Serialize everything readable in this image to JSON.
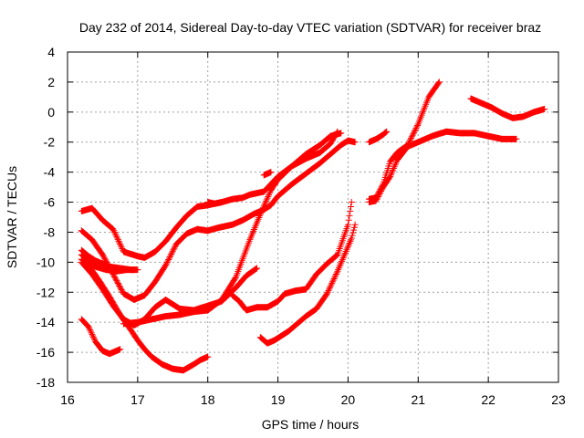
{
  "chart_data": {
    "type": "scatter",
    "title": "Day 232 of 2014, Sidereal Day-to-day VTEC variation (SDTVAR) for receiver braz",
    "xlabel": "GPS time / hours",
    "ylabel": "SDTVAR / TECUs",
    "xlim": [
      16,
      23
    ],
    "ylim": [
      -18,
      4
    ],
    "xticks": [
      16,
      17,
      18,
      19,
      20,
      21,
      22,
      23
    ],
    "yticks": [
      -18,
      -16,
      -14,
      -12,
      -10,
      -8,
      -6,
      -4,
      -2,
      0,
      2,
      4
    ],
    "grid": true,
    "legend": "none",
    "marker": "plus",
    "color": "#ff0000",
    "series": [
      {
        "x": [
          16.2,
          16.3,
          16.45,
          16.6,
          16.75,
          16.9,
          17.0,
          17.1,
          17.2,
          17.35,
          17.5,
          17.65,
          17.8,
          17.9,
          18.0
        ],
        "y": [
          -9.8,
          -10.2,
          -11.2,
          -12.3,
          -13.5,
          -14.5,
          -15.2,
          -15.8,
          -16.3,
          -16.8,
          -17.1,
          -17.2,
          -16.8,
          -16.5,
          -16.3
        ]
      },
      {
        "x": [
          16.2,
          16.35,
          16.5,
          16.65,
          16.8,
          17.0,
          17.1,
          17.25,
          17.4,
          17.55,
          17.7,
          17.85,
          18.0,
          18.1,
          18.2
        ],
        "y": [
          -6.6,
          -6.4,
          -7.2,
          -7.8,
          -9.3,
          -9.6,
          -9.7,
          -9.3,
          -8.6,
          -7.7,
          -6.9,
          -6.3,
          -6.2,
          -6.1,
          -6.0
        ]
      },
      {
        "x": [
          18.0,
          18.1,
          18.2,
          18.35,
          18.5,
          18.6,
          18.7,
          18.8,
          18.9,
          19.0,
          19.2,
          19.4,
          19.6,
          19.75,
          19.9
        ],
        "y": [
          -6.0,
          -6.1,
          -6.0,
          -5.8,
          -5.7,
          -5.5,
          -5.4,
          -5.3,
          -4.8,
          -4.3,
          -3.6,
          -2.8,
          -2.2,
          -1.6,
          -1.4
        ]
      },
      {
        "x": [
          16.2,
          16.3,
          16.4,
          16.5,
          16.6,
          16.75,
          16.9,
          17.0
        ],
        "y": [
          -9.2,
          -9.6,
          -9.9,
          -10.1,
          -10.3,
          -10.4,
          -10.5,
          -10.5
        ]
      },
      {
        "x": [
          16.2,
          16.35,
          16.5,
          16.65,
          16.8,
          16.95,
          17.1,
          17.25,
          17.4,
          17.55,
          17.7,
          17.85,
          18.0,
          18.15,
          18.35,
          18.5,
          18.65,
          18.8
        ],
        "y": [
          -7.9,
          -8.5,
          -9.5,
          -10.8,
          -12.1,
          -12.5,
          -12.2,
          -11.3,
          -10.2,
          -8.8,
          -8.1,
          -7.8,
          -7.9,
          -7.7,
          -7.5,
          -7.2,
          -6.8,
          -6.5
        ]
      },
      {
        "x": [
          18.8,
          18.9,
          19.0,
          19.2,
          19.4,
          19.6,
          19.75,
          19.9,
          20.0,
          20.1
        ],
        "y": [
          -6.5,
          -6.2,
          -5.6,
          -4.8,
          -4.1,
          -3.4,
          -2.8,
          -2.2,
          -1.9,
          -2.0
        ]
      },
      {
        "x": [
          16.2,
          16.35,
          16.5,
          16.65,
          16.8,
          16.95,
          17.1,
          17.25,
          17.4,
          17.6,
          17.8,
          18.0,
          18.2,
          18.4,
          18.55,
          18.7
        ],
        "y": [
          -10.0,
          -10.8,
          -11.8,
          -12.9,
          -13.8,
          -14.2,
          -13.8,
          -13.0,
          -12.5,
          -13.1,
          -13.2,
          -12.9,
          -12.6,
          -11.7,
          -10.9,
          -10.4
        ]
      },
      {
        "x": [
          16.2,
          16.3,
          16.4,
          16.5,
          16.6,
          16.75
        ],
        "y": [
          -13.8,
          -14.3,
          -15.3,
          -15.9,
          -16.1,
          -15.8
        ]
      },
      {
        "x": [
          16.8,
          17.0,
          17.2,
          17.4,
          17.6,
          17.8,
          18.0,
          18.2,
          18.4,
          18.6,
          18.75,
          18.9
        ],
        "y": [
          -14.1,
          -14.0,
          -13.8,
          -13.6,
          -13.5,
          -13.3,
          -13.2,
          -12.5,
          -11.0,
          -8.5,
          -6.8,
          -5.2
        ]
      },
      {
        "x": [
          18.9,
          19.0,
          19.2,
          19.4,
          19.6,
          19.75,
          19.85
        ],
        "y": [
          -5.2,
          -4.5,
          -3.6,
          -3.1,
          -2.7,
          -2.1,
          -1.3
        ]
      },
      {
        "x": [
          16.2,
          16.3,
          16.4,
          16.55,
          16.7,
          16.85,
          16.95
        ],
        "y": [
          -9.5,
          -9.9,
          -10.3,
          -10.5,
          -10.6,
          -10.5,
          -10.5
        ]
      },
      {
        "x": [
          18.35,
          18.45,
          18.55,
          18.7,
          18.85,
          19.0,
          19.1
        ],
        "y": [
          -12.2,
          -12.6,
          -13.2,
          -13.0,
          -13.0,
          -12.6,
          -12.1
        ]
      },
      {
        "x": [
          19.1,
          19.25,
          19.4,
          19.55,
          19.7,
          19.85,
          20.0,
          20.05
        ],
        "y": [
          -12.1,
          -11.9,
          -11.8,
          -10.8,
          -10.1,
          -9.5,
          -7.5,
          -6.0
        ]
      },
      {
        "x": [
          18.75,
          18.85,
          18.95,
          19.05,
          19.15,
          19.25,
          19.4,
          19.55,
          19.7,
          19.85,
          19.95,
          20.05,
          20.1
        ],
        "y": [
          -15.0,
          -15.4,
          -15.2,
          -14.9,
          -14.6,
          -14.2,
          -13.6,
          -13.1,
          -12.1,
          -10.6,
          -9.5,
          -8.4,
          -7.5
        ]
      },
      {
        "x": [
          18.8,
          18.9
        ],
        "y": [
          -4.2,
          -4.0
        ]
      },
      {
        "x": [
          20.3,
          20.4,
          20.5,
          20.6,
          20.7,
          20.85,
          21.0,
          21.15,
          21.3
        ],
        "y": [
          -5.8,
          -5.7,
          -4.8,
          -3.3,
          -2.7,
          -2.2,
          -0.8,
          1.0,
          2.0
        ]
      },
      {
        "x": [
          20.3,
          20.4,
          20.5,
          20.6,
          20.7,
          20.85,
          21.0,
          21.2,
          21.4,
          21.6,
          21.8,
          22.0,
          22.2,
          22.4
        ],
        "y": [
          -6.0,
          -5.9,
          -5.0,
          -4.3,
          -3.2,
          -2.3,
          -2.0,
          -1.6,
          -1.3,
          -1.4,
          -1.4,
          -1.6,
          -1.8,
          -1.8
        ]
      },
      {
        "x": [
          20.3,
          20.4,
          20.5,
          20.55
        ],
        "y": [
          -2.0,
          -1.8,
          -1.5,
          -1.3
        ]
      },
      {
        "x": [
          21.75,
          21.9,
          22.05,
          22.2,
          22.35,
          22.5,
          22.65,
          22.8
        ],
        "y": [
          0.9,
          0.6,
          0.3,
          -0.1,
          -0.4,
          -0.3,
          0.0,
          0.2
        ]
      }
    ]
  }
}
